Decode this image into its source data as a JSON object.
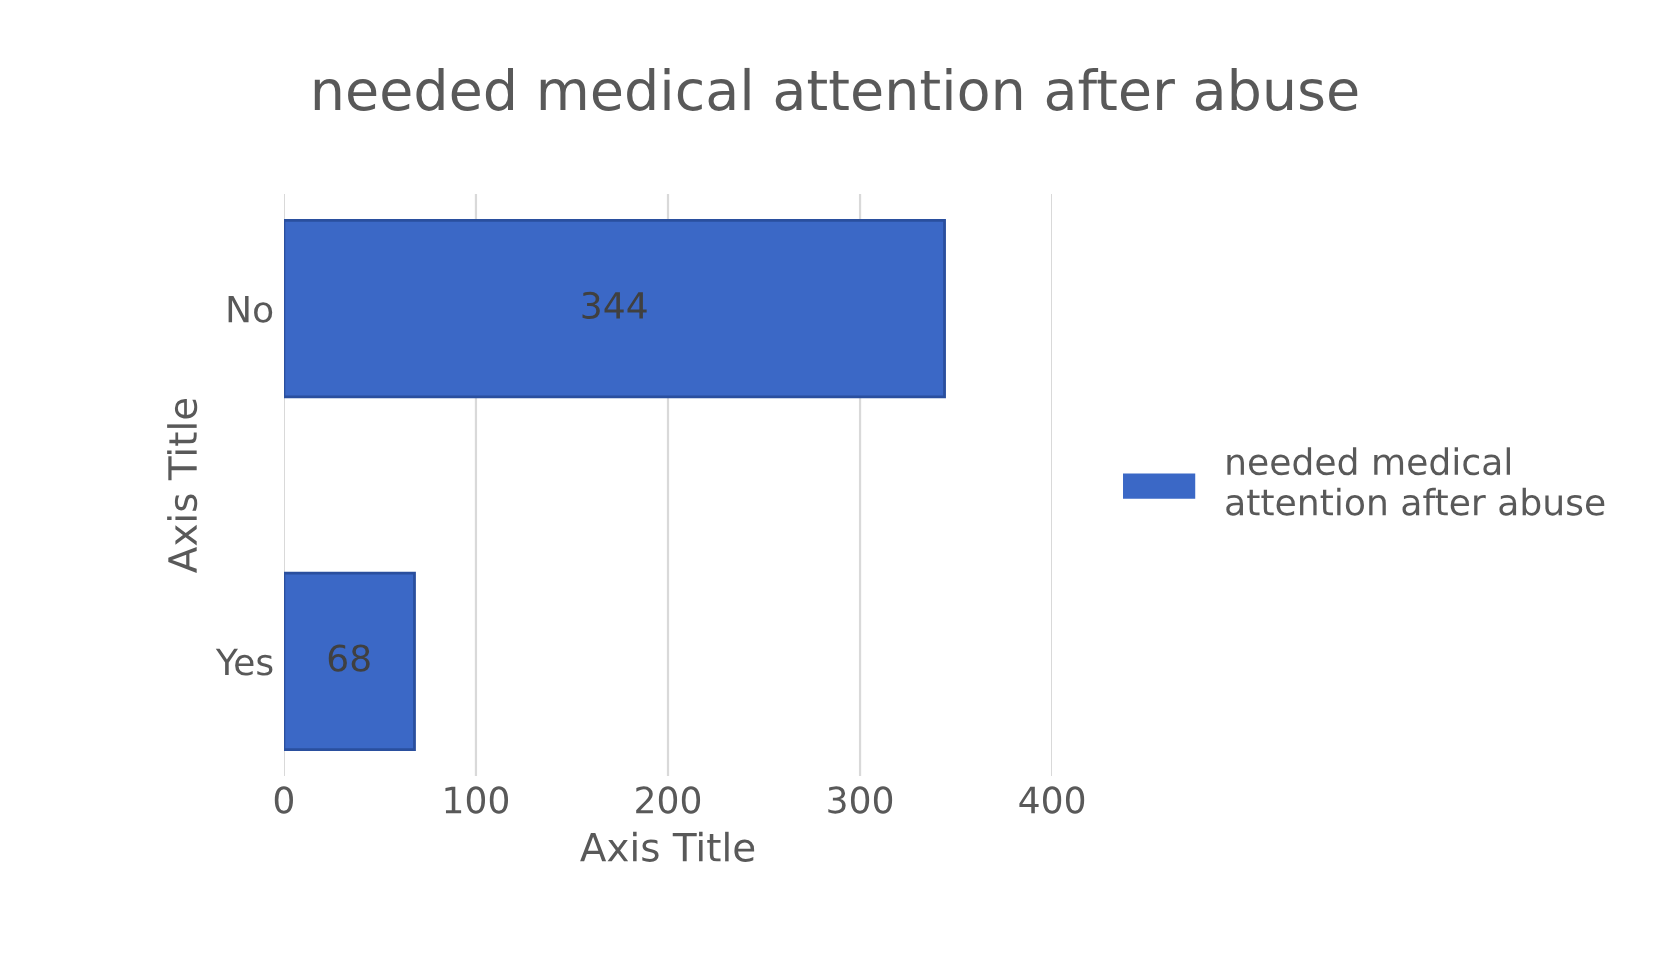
{
  "chart_data": {
    "type": "bar",
    "orientation": "horizontal",
    "title": "needed medical attention after abuse",
    "xlabel": "Axis Title",
    "ylabel": "Axis Title",
    "categories": [
      "No",
      "Yes"
    ],
    "series": [
      {
        "name": "needed medical attention after abuse",
        "color": "#3b68c6",
        "values": [
          344,
          68
        ]
      }
    ],
    "xlim": [
      0,
      400
    ],
    "xticks": [
      0,
      100,
      200,
      300,
      400
    ],
    "grid": "x",
    "legend": "right",
    "data_labels": true
  }
}
